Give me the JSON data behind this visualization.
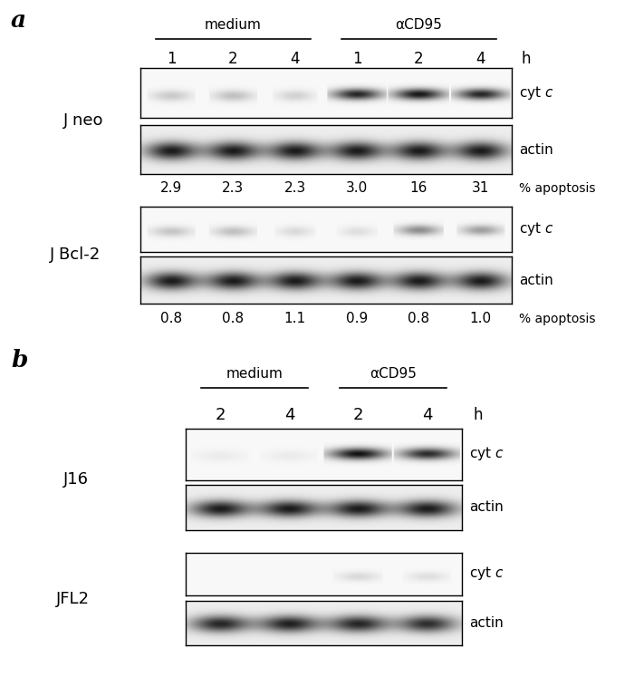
{
  "fig_width": 7.0,
  "fig_height": 7.68,
  "bg_color": "#ffffff",
  "panel_a_label": "a",
  "panel_b_label": "b",
  "medium_label": "medium",
  "acd95_label": "αCD95",
  "h_label": "h",
  "panel_a": {
    "j_neo_label": "J neo",
    "j_bcl2_label": "J Bcl-2",
    "timepoints_6": [
      "1",
      "2",
      "4",
      "1",
      "2",
      "4"
    ],
    "apoptosis_neo": [
      "2.9",
      "2.3",
      "2.3",
      "3.0",
      "16",
      "31"
    ],
    "apoptosis_bcl2": [
      "0.8",
      "0.8",
      "1.1",
      "0.9",
      "0.8",
      "1.0"
    ],
    "percent_apoptosis_label": "% apoptosis"
  },
  "panel_b": {
    "j16_label": "J16",
    "jfl2_label": "JFL2",
    "timepoints_4": [
      "2",
      "4",
      "2",
      "4"
    ],
    "medium_label": "medium",
    "acd95_label": "αCD95"
  }
}
